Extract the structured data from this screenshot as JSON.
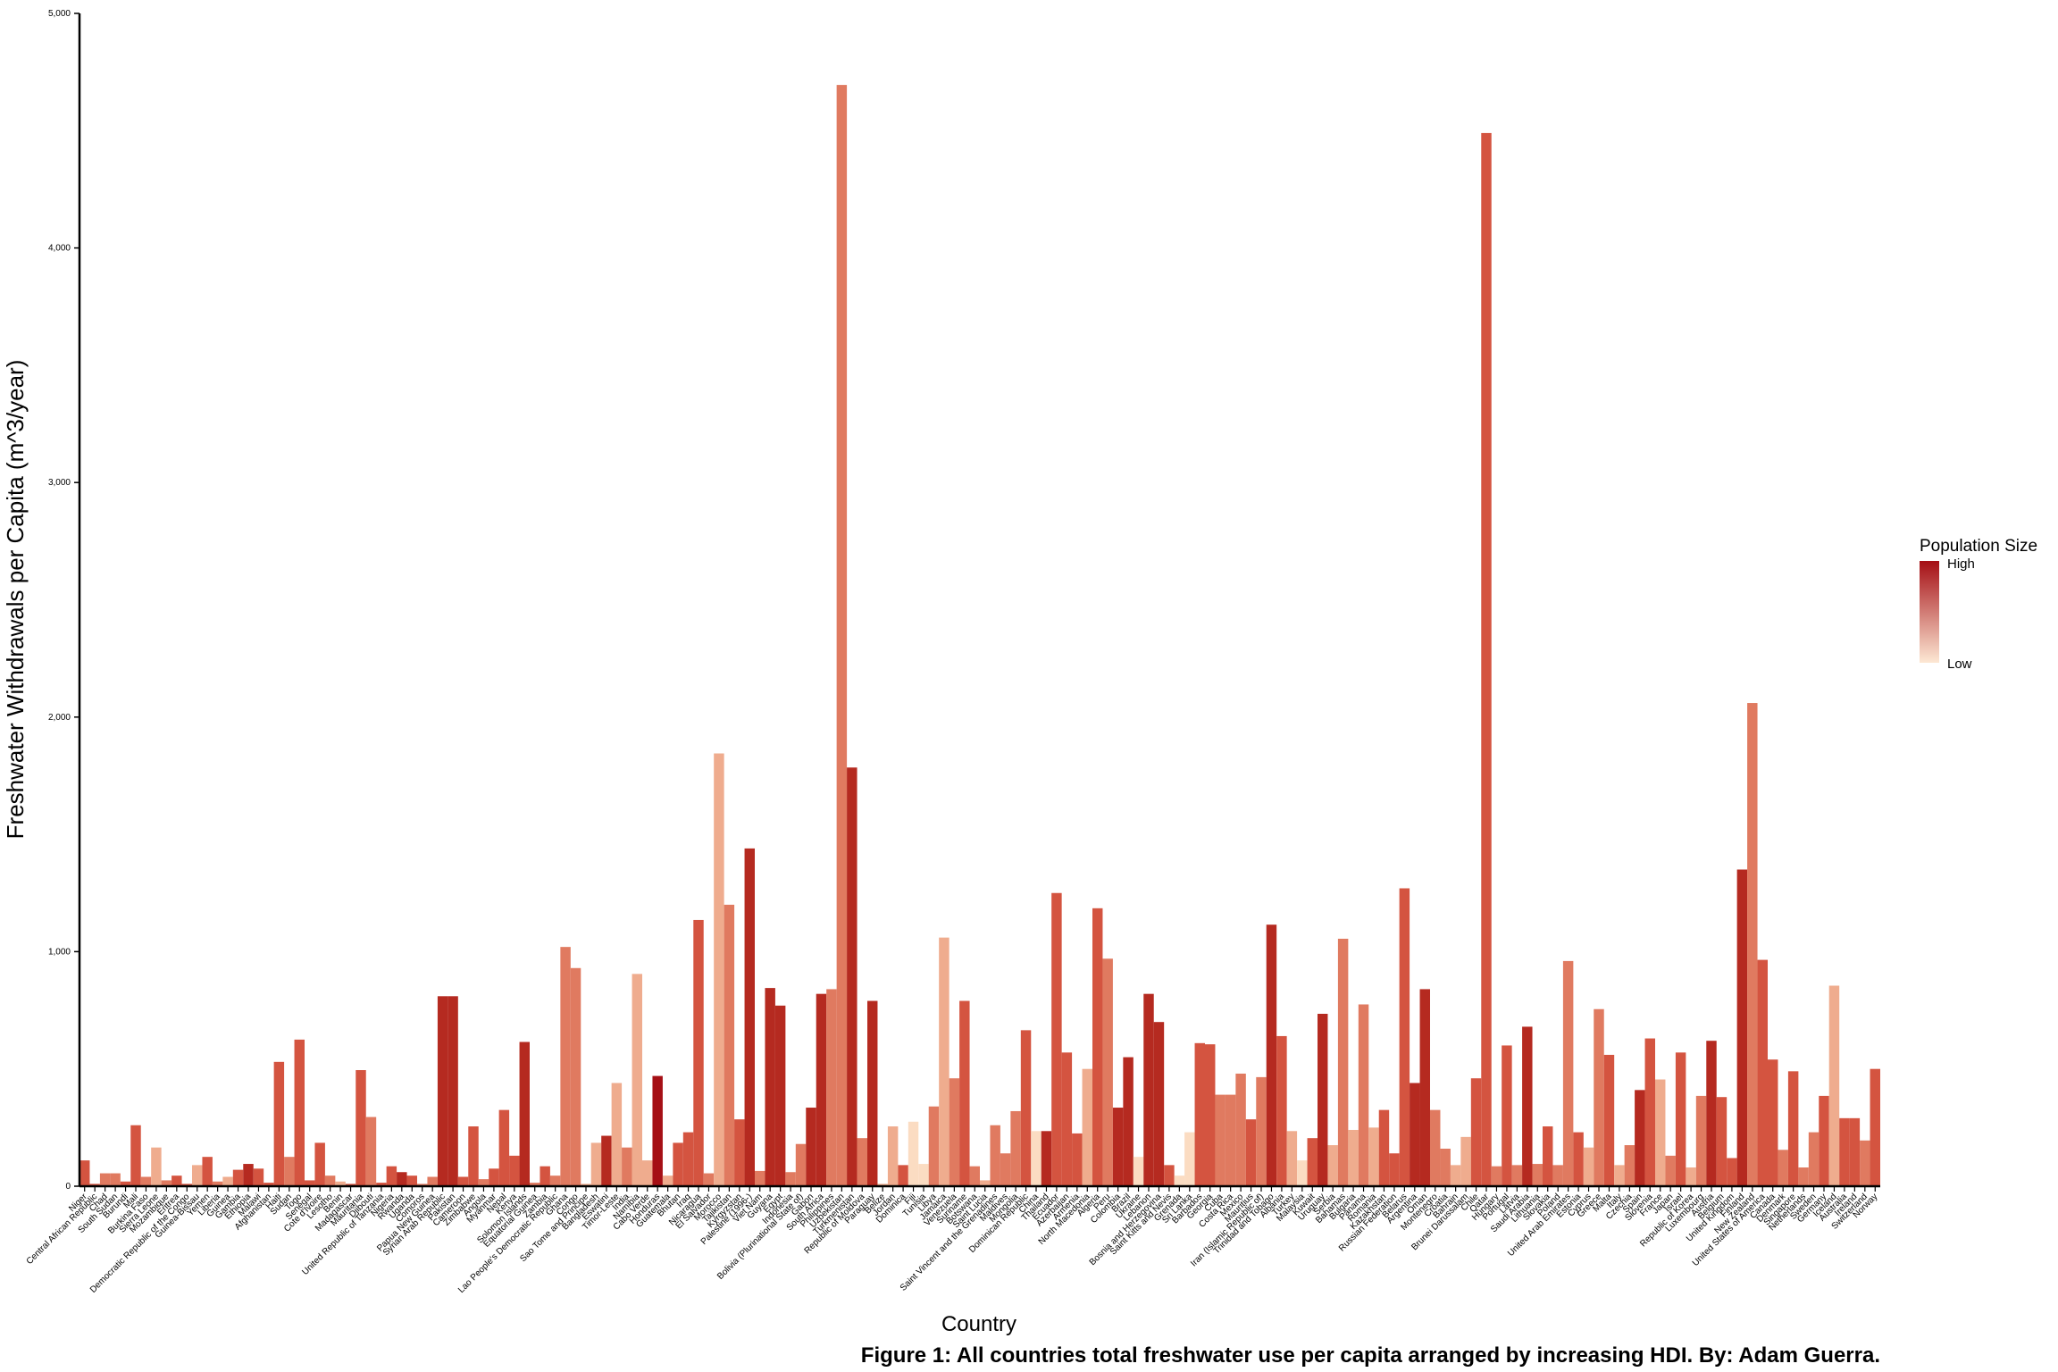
{
  "chart_data": {
    "type": "bar",
    "caption": "Figure 1: All countries total freshwater use per capita arranged by increasing HDI. By: Adam Guerra.",
    "x_label": "Country",
    "y_label": "Freshwater Withdrawals per Capita (m^3/year)",
    "ylim": [
      0,
      5000
    ],
    "yticks": [
      0,
      {
        "value": 1000,
        "label": "1,000"
      },
      {
        "value": 2000,
        "label": "2,000"
      },
      {
        "value": 3000,
        "label": "3,000"
      },
      {
        "value": 4000,
        "label": "4,000"
      },
      {
        "value": 5000,
        "label": "5,000"
      }
    ],
    "legend": {
      "title": "Population Size",
      "high_label": "High",
      "low_label": "Low",
      "high_color": "#a50f15",
      "low_color": "#fde8d4"
    },
    "categories": [
      "Niger",
      "Central African Republic",
      "Chad",
      "South Sudan",
      "Burundi",
      "Mali",
      "Burkina Faso",
      "Sierra Leone",
      "Mozambique",
      "Eritrea",
      "Democratic Republic of the Congo",
      "Guinea-Bissau",
      "Yemen",
      "Liberia",
      "Guinea",
      "Gambia",
      "Ethiopia",
      "Malawi",
      "Afghanistan",
      "Haiti",
      "Sudan",
      "Togo",
      "Senegal",
      "Cote d'Ivoire",
      "Lesotho",
      "Benin",
      "Madagascar",
      "Mauritania",
      "Djibouti",
      "United Republic of Tanzania",
      "Nigeria",
      "Rwanda",
      "Uganda",
      "Comoros",
      "Papua New Guinea",
      "Syrian Arab Republic",
      "Pakistan",
      "Cameroon",
      "Zimbabwe",
      "Angola",
      "Myanmar",
      "Nepal",
      "Kenya",
      "Solomon Islands",
      "Equatorial Guinea",
      "Zambia",
      "Lao People's Democratic Republic",
      "Ghana",
      "Congo",
      "Sao Tome and Principe",
      "Bangladesh",
      "Eswatini",
      "Timor-Leste",
      "India",
      "Namibia",
      "Cabo Verde",
      "Honduras",
      "Guatemala",
      "Bhutan",
      "Iraq",
      "Nicaragua",
      "El Salvador",
      "Morocco",
      "Tajikistan",
      "Kyrgyzstan",
      "Palestine (1996-)",
      "Viet Nam",
      "Guyana",
      "Egypt",
      "Indonesia",
      "Bolivia (Plurinational State of)",
      "Gabon",
      "South Africa",
      "Philippines",
      "Uzbekistan",
      "Turkmenistan",
      "Republic of Moldova",
      "Paraguay",
      "Belize",
      "Jordan",
      "Dominica",
      "Fiji",
      "Tunisia",
      "Libya",
      "Jamaica",
      "Venezuela",
      "Suriname",
      "Botswana",
      "Saint Lucia",
      "Saint Vincent and the Grenadines",
      "Maldives",
      "Mongolia",
      "Dominican Republic",
      "China",
      "Thailand",
      "Ecuador",
      "Azerbaijan",
      "Armenia",
      "North Macedonia",
      "Algeria",
      "Peru",
      "Colombia",
      "Brazil",
      "Ukraine",
      "Lebanon",
      "Bosnia and Herzegovina",
      "Saint Kitts and Nevis",
      "Grenada",
      "Sri Lanka",
      "Barbados",
      "Georgia",
      "Cuba",
      "Costa Rica",
      "Mexico",
      "Mauritius",
      "Iran (Islamic Republic of)",
      "Trinidad and Tobago",
      "Albania",
      "Turkey",
      "Malaysia",
      "Kuwait",
      "Uruguay",
      "Serbia",
      "Bahamas",
      "Bulgaria",
      "Panama",
      "Romania",
      "Kazakhstan",
      "Russian Federation",
      "Belarus",
      "Argentina",
      "Oman",
      "Montenegro",
      "Croatia",
      "Bahrain",
      "Brunei Darussalam",
      "Chile",
      "Qatar",
      "Hungary",
      "Portugal",
      "Latvia",
      "Saudi Arabia",
      "Lithuania",
      "Slovakia",
      "Poland",
      "United Arab Emirates",
      "Estonia",
      "Cyprus",
      "Greece",
      "Malta",
      "Italy",
      "Czechia",
      "Spain",
      "Slovenia",
      "France",
      "Japan",
      "Israel",
      "Republic of Korea",
      "Luxembourg",
      "Austria",
      "Belgium",
      "United Kingdom",
      "Finland",
      "New Zealand",
      "United States of America",
      "Canada",
      "Denmark",
      "Singapore",
      "Netherlands",
      "Sweden",
      "Germany",
      "Iceland",
      "Australia",
      "Ireland",
      "Switzerland",
      "Norway"
    ],
    "values": [
      110,
      10,
      55,
      55,
      20,
      260,
      40,
      165,
      25,
      45,
      10,
      90,
      125,
      20,
      40,
      70,
      95,
      75,
      15,
      530,
      125,
      625,
      25,
      185,
      45,
      20,
      10,
      495,
      295,
      15,
      85,
      60,
      45,
      10,
      40,
      810,
      810,
      40,
      255,
      30,
      75,
      325,
      130,
      615,
      15,
      85,
      45,
      1020,
      930,
      10,
      185,
      215,
      440,
      165,
      905,
      110,
      470,
      45,
      185,
      230,
      1135,
      55,
      1845,
      1200,
      285,
      1440,
      65,
      845,
      770,
      60,
      180,
      335,
      820,
      840,
      4695,
      1785,
      205,
      790,
      10,
      255,
      90,
      275,
      95,
      340,
      1060,
      460,
      790,
      85,
      25,
      260,
      140,
      320,
      665,
      235,
      235,
      1250,
      570,
      225,
      500,
      1185,
      970,
      335,
      550,
      125,
      820,
      700,
      90,
      45,
      230,
      610,
      605,
      390,
      390,
      480,
      285,
      465,
      1115,
      640,
      235,
      110,
      205,
      735,
      175,
      1055,
      240,
      775,
      250,
      325,
      140,
      1270,
      440,
      840,
      325,
      160,
      90,
      210,
      460,
      4490,
      85,
      600,
      90,
      680,
      95,
      255,
      90,
      960,
      230,
      165,
      755,
      560,
      90,
      175,
      410,
      630,
      455,
      130,
      570,
      80,
      385,
      620,
      380,
      120,
      1350,
      2060,
      965,
      540,
      155,
      490,
      80,
      230,
      385,
      855,
      290,
      290,
      195,
      500
    ],
    "colors": [
      "#d45440",
      "#d45440",
      "#e07a60",
      "#e07a60",
      "#d45440",
      "#d45440",
      "#e07a60",
      "#efac8e",
      "#e07a60",
      "#d45440",
      "#d45440",
      "#efac8e",
      "#d45440",
      "#e07a60",
      "#efac8e",
      "#d45440",
      "#b52a20",
      "#d45440",
      "#d45440",
      "#d45440",
      "#e07a60",
      "#d45440",
      "#d45440",
      "#d45440",
      "#e07a60",
      "#efac8e",
      "#d45440",
      "#d45440",
      "#e07a60",
      "#d45440",
      "#d45440",
      "#b52a20",
      "#d45440",
      "#e07a60",
      "#e07a60",
      "#b52a20",
      "#b52a20",
      "#d45440",
      "#d45440",
      "#e07a60",
      "#d45440",
      "#d45440",
      "#d45440",
      "#b52a20",
      "#e07a60",
      "#d45440",
      "#e07a60",
      "#e07a60",
      "#e07a60",
      "#efac8e",
      "#efac8e",
      "#b52a20",
      "#efac8e",
      "#e07a60",
      "#efac8e",
      "#efac8e",
      "#a50f15",
      "#efac8e",
      "#d45440",
      "#d45440",
      "#d45440",
      "#e07a60",
      "#efac8e",
      "#e07a60",
      "#d45440",
      "#b52a20",
      "#e07a60",
      "#b52a20",
      "#b52a20",
      "#e07a60",
      "#e07a60",
      "#b52a20",
      "#b52a20",
      "#e07a60",
      "#e07a60",
      "#b52a20",
      "#e07a60",
      "#b52a20",
      "#efac8e",
      "#efac8e",
      "#d45440",
      "#fbdcc2",
      "#fbdcc2",
      "#e07a60",
      "#efac8e",
      "#e07a60",
      "#d45440",
      "#e07a60",
      "#efac8e",
      "#e07a60",
      "#e07a60",
      "#e07a60",
      "#d45440",
      "#fbdcc2",
      "#b52a20",
      "#d45440",
      "#d45440",
      "#d45440",
      "#efac8e",
      "#d45440",
      "#e07a60",
      "#b52a20",
      "#b52a20",
      "#fbdcc2",
      "#b52a20",
      "#b52a20",
      "#d45440",
      "#fbdcc2",
      "#fbdcc2",
      "#d45440",
      "#d45440",
      "#e07a60",
      "#e07a60",
      "#e07a60",
      "#d45440",
      "#e07a60",
      "#b52a20",
      "#d45440",
      "#efac8e",
      "#fbdcc2",
      "#d45440",
      "#b52a20",
      "#efac8e",
      "#e07a60",
      "#efac8e",
      "#e07a60",
      "#efac8e",
      "#d45440",
      "#d45440",
      "#d45440",
      "#b52a20",
      "#b52a20",
      "#e07a60",
      "#e07a60",
      "#efac8e",
      "#efac8e",
      "#d45440",
      "#d45440",
      "#e07a60",
      "#d45440",
      "#e07a60",
      "#b52a20",
      "#e07a60",
      "#d45440",
      "#e07a60",
      "#e07a60",
      "#d45440",
      "#efac8e",
      "#e07a60",
      "#d45440",
      "#efac8e",
      "#e07a60",
      "#b52a20",
      "#d45440",
      "#efac8e",
      "#e07a60",
      "#d45440",
      "#efac8e",
      "#e07a60",
      "#b52a20",
      "#d45440",
      "#d45440",
      "#b52a20",
      "#e07a60",
      "#d45440",
      "#d45440",
      "#e07a60",
      "#d45440",
      "#e07a60",
      "#e07a60",
      "#d45440",
      "#efac8e",
      "#d45440",
      "#d45440",
      "#e07a60",
      "#d45440"
    ]
  }
}
